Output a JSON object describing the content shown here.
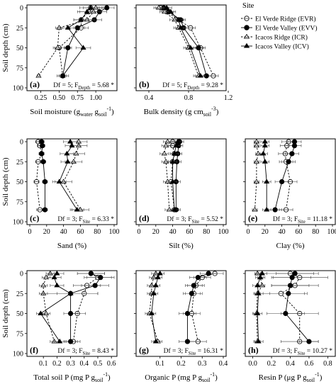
{
  "figure": {
    "y_axis_label": "Soil depth (cm)",
    "y_ticks": [
      0,
      25,
      50,
      75,
      100
    ]
  },
  "legend": {
    "title": "Site",
    "entries": [
      {
        "key": "EVR",
        "label": "El Verde Ridge (EVR)",
        "marker": "open-circle",
        "line": "dashed"
      },
      {
        "key": "EVV",
        "label": "El Verde Valley (EVV)",
        "marker": "filled-circle",
        "line": "solid"
      },
      {
        "key": "ICR",
        "label": "Icacos Ridge (ICR)",
        "marker": "open-triangle",
        "line": "dashed"
      },
      {
        "key": "ICV",
        "label": "Icacos Valley (ICV)",
        "marker": "filled-triangle",
        "line": "solid"
      }
    ]
  },
  "chart_data": [
    {
      "type": "line",
      "panel": "(a)",
      "stats": "Df = 5; F_Depth = 5.68 *",
      "xlabel": "Soil moisture (g_water g_soil^-1)",
      "xlim": [
        0.1,
        1.25
      ],
      "xticks": [
        "0.25",
        "0.50",
        "0.75",
        "1.00"
      ],
      "xtick_values": [
        0.25,
        0.5,
        0.75,
        1.0
      ],
      "ylim": [
        0,
        100
      ],
      "depth": [
        0,
        5,
        15,
        25,
        50,
        85
      ],
      "series": [
        {
          "name": "EVR",
          "values": [
            0.93,
            0.9,
            0.8,
            0.8,
            0.5,
            0.55
          ],
          "err": [
            0.15,
            0.15,
            0.1,
            0.1,
            0.08,
            0.08
          ]
        },
        {
          "name": "EVV",
          "values": [
            1.15,
            1.05,
            0.98,
            0.75,
            0.62,
            0.55
          ],
          "err": [
            0.1,
            0.1,
            0.1,
            0.1,
            0.05,
            0.05
          ]
        },
        {
          "name": "ICR",
          "values": [
            1.0,
            0.97,
            0.88,
            0.5,
            0.48,
            0.22
          ],
          "err": [
            0.1,
            0.1,
            0.1,
            0.05,
            0.04,
            0.02
          ]
        },
        {
          "name": "ICV",
          "values": [
            0.93,
            0.88,
            0.8,
            0.62,
            0.83,
            0.55
          ],
          "err": [
            0.1,
            0.1,
            0.1,
            0.1,
            0.1,
            0.05
          ]
        }
      ]
    },
    {
      "type": "line",
      "panel": "(b)",
      "stats": "Df = 5; F_Depth = 9.28 *",
      "xlabel": "Bulk density (g cm_soil^-3)",
      "xlim": [
        0.3,
        1.15
      ],
      "xticks": [
        "0.4",
        "0.8",
        "1.2"
      ],
      "xtick_values": [
        0.4,
        0.8,
        1.2
      ],
      "ylim": [
        0,
        100
      ],
      "depth": [
        0,
        5,
        15,
        25,
        50,
        85
      ],
      "series": [
        {
          "name": "EVR",
          "values": [
            0.52,
            0.58,
            0.7,
            0.82,
            0.92,
            1.05
          ],
          "err": [
            0.05,
            0.05,
            0.05,
            0.05,
            0.05,
            0.05
          ]
        },
        {
          "name": "EVV",
          "values": [
            0.55,
            0.6,
            0.72,
            0.75,
            0.9,
            0.98
          ],
          "err": [
            0.05,
            0.05,
            0.05,
            0.05,
            0.05,
            0.05
          ]
        },
        {
          "name": "ICR",
          "values": [
            0.5,
            0.56,
            0.66,
            0.7,
            0.8,
            0.9
          ],
          "err": [
            0.05,
            0.05,
            0.05,
            0.05,
            0.05,
            0.05
          ]
        },
        {
          "name": "ICV",
          "values": [
            0.58,
            0.62,
            0.7,
            0.72,
            0.82,
            0.92
          ],
          "err": [
            0.05,
            0.05,
            0.05,
            0.05,
            0.05,
            0.05
          ]
        }
      ]
    },
    {
      "type": "line",
      "panel": "(c)",
      "stats": "Df = 3; F_Site = 6.33 *",
      "xlabel": "Sand (%)",
      "xlim": [
        0,
        100
      ],
      "xticks": [
        "0",
        "20",
        "40",
        "60",
        "80",
        "100"
      ],
      "xtick_values": [
        0,
        20,
        40,
        60,
        80,
        100
      ],
      "ylim": [
        0,
        100
      ],
      "depth": [
        0,
        5,
        15,
        25,
        50,
        85
      ],
      "series": [
        {
          "name": "EVR",
          "values": [
            10,
            12,
            14,
            10,
            8,
            12
          ],
          "err": [
            3,
            3,
            3,
            3,
            3,
            4
          ]
        },
        {
          "name": "EVV",
          "values": [
            14,
            15,
            14,
            16,
            18,
            18
          ],
          "err": [
            3,
            3,
            3,
            3,
            3,
            3
          ]
        },
        {
          "name": "ICR",
          "values": [
            58,
            58,
            55,
            52,
            40,
            60
          ],
          "err": [
            10,
            10,
            10,
            10,
            10,
            10
          ]
        },
        {
          "name": "ICV",
          "values": [
            48,
            50,
            44,
            45,
            35,
            56
          ],
          "err": [
            8,
            8,
            8,
            8,
            8,
            8
          ]
        }
      ]
    },
    {
      "type": "line",
      "panel": "(d)",
      "stats": "Df = 3; F_Site = 5.52 *",
      "xlabel": "Silt (%)",
      "xlim": [
        0,
        100
      ],
      "xticks": [
        "0",
        "20",
        "40",
        "60",
        "80",
        "100"
      ],
      "xtick_values": [
        0,
        20,
        40,
        60,
        80,
        100
      ],
      "ylim": [
        0,
        100
      ],
      "depth": [
        0,
        5,
        15,
        25,
        50,
        85
      ],
      "series": [
        {
          "name": "EVR",
          "values": [
            40,
            40,
            42,
            40,
            38,
            42
          ],
          "err": [
            5,
            5,
            5,
            5,
            5,
            5
          ]
        },
        {
          "name": "EVV",
          "values": [
            48,
            47,
            46,
            45,
            44,
            44
          ],
          "err": [
            5,
            5,
            5,
            5,
            5,
            5
          ]
        },
        {
          "name": "ICR",
          "values": [
            34,
            32,
            30,
            32,
            34,
            36
          ],
          "err": [
            5,
            5,
            5,
            5,
            5,
            5
          ]
        },
        {
          "name": "ICV",
          "values": [
            46,
            44,
            42,
            40,
            40,
            42
          ],
          "err": [
            5,
            5,
            5,
            5,
            5,
            5
          ]
        }
      ]
    },
    {
      "type": "line",
      "panel": "(e)",
      "stats": "Df = 3; F_Site = 11.18 *",
      "xlabel": "Clay (%)",
      "xlim": [
        0,
        100
      ],
      "xticks": [
        "0",
        "20",
        "40",
        "60",
        "80",
        "100"
      ],
      "xtick_values": [
        0,
        20,
        40,
        60,
        80,
        100
      ],
      "ylim": [
        0,
        100
      ],
      "depth": [
        0,
        5,
        15,
        25,
        50,
        85
      ],
      "series": [
        {
          "name": "EVR",
          "values": [
            48,
            46,
            44,
            45,
            50,
            45
          ],
          "err": [
            8,
            8,
            8,
            8,
            8,
            8
          ]
        },
        {
          "name": "EVV",
          "values": [
            55,
            55,
            52,
            48,
            40,
            32
          ],
          "err": [
            8,
            8,
            8,
            8,
            8,
            8
          ]
        },
        {
          "name": "ICR",
          "values": [
            10,
            10,
            12,
            10,
            10,
            8
          ],
          "err": [
            3,
            3,
            3,
            3,
            3,
            3
          ]
        },
        {
          "name": "ICV",
          "values": [
            20,
            20,
            18,
            20,
            22,
            22
          ],
          "err": [
            5,
            5,
            5,
            5,
            5,
            5
          ]
        }
      ]
    },
    {
      "type": "line",
      "panel": "(f)",
      "stats": "Df = 3; F_Site = 8.43 *",
      "xlabel": "Total soil P (mg P g_soil^-1)",
      "xlim": [
        0,
        0.62
      ],
      "xticks": [
        "0.1",
        "0.2",
        "0.3",
        "0.4",
        "0.5",
        "0.6"
      ],
      "xtick_values": [
        0.1,
        0.2,
        0.3,
        0.4,
        0.5,
        0.6
      ],
      "ylim": [
        0,
        100
      ],
      "depth": [
        0,
        5,
        15,
        25,
        50,
        85
      ],
      "series": [
        {
          "name": "EVR",
          "values": [
            0.45,
            0.5,
            0.42,
            0.4,
            0.35,
            0.32
          ],
          "err": [
            0.1,
            0.1,
            0.1,
            0.1,
            0.06,
            0.05
          ]
        },
        {
          "name": "EVV",
          "values": [
            0.45,
            0.52,
            0.48,
            0.3,
            0.3,
            0.3
          ],
          "err": [
            0.1,
            0.1,
            0.1,
            0.1,
            0.05,
            0.05
          ]
        },
        {
          "name": "ICR",
          "values": [
            0.15,
            0.12,
            0.1,
            0.1,
            0.12,
            0.18
          ],
          "err": [
            0.03,
            0.03,
            0.03,
            0.03,
            0.03,
            0.03
          ]
        },
        {
          "name": "ICV",
          "values": [
            0.2,
            0.18,
            0.2,
            0.3,
            0.08,
            0.22
          ],
          "err": [
            0.05,
            0.05,
            0.05,
            0.2,
            0.03,
            0.04
          ]
        }
      ]
    },
    {
      "type": "line",
      "panel": "(g)",
      "stats": "Df = 3; F_Site = 16.31 *",
      "xlabel": "Organic P (mg P g_soil^-1)",
      "xlim": [
        0,
        0.4
      ],
      "xticks": [
        "0.1",
        "0.2",
        "0.3",
        "0.4"
      ],
      "xtick_values": [
        0.1,
        0.2,
        0.3,
        0.4
      ],
      "ylim": [
        0,
        100
      ],
      "depth": [
        0,
        5,
        15,
        25,
        50,
        85
      ],
      "series": [
        {
          "name": "EVR",
          "values": [
            0.36,
            0.3,
            0.27,
            0.26,
            0.25,
            0.28
          ],
          "err": [
            0.04,
            0.04,
            0.04,
            0.04,
            0.04,
            0.04
          ]
        },
        {
          "name": "EVV",
          "values": [
            0.33,
            0.28,
            0.26,
            0.25,
            0.23,
            0.23
          ],
          "err": [
            0.04,
            0.04,
            0.04,
            0.04,
            0.04,
            0.04
          ]
        },
        {
          "name": "ICR",
          "values": [
            0.08,
            0.07,
            0.06,
            0.06,
            0.05,
            0.09
          ],
          "err": [
            0.02,
            0.02,
            0.02,
            0.02,
            0.02,
            0.02
          ]
        },
        {
          "name": "ICV",
          "values": [
            0.1,
            0.09,
            0.08,
            0.07,
            0.06,
            0.08
          ],
          "err": [
            0.02,
            0.02,
            0.02,
            0.02,
            0.02,
            0.02
          ]
        }
      ]
    },
    {
      "type": "line",
      "panel": "(h)",
      "stats": "Df = 3; F_Site = 10.27 *",
      "xlabel": "Resin P (μg P g_soil^-1)",
      "xlim": [
        -0.05,
        0.85
      ],
      "xticks": [
        "0.0",
        "0.2",
        "0.4",
        "0.6",
        "0.8"
      ],
      "xtick_values": [
        0.0,
        0.2,
        0.4,
        0.6,
        0.8
      ],
      "ylim": [
        0,
        100
      ],
      "depth": [
        0,
        5,
        15,
        25,
        50,
        85
      ],
      "series": [
        {
          "name": "EVR",
          "values": [
            0.4,
            0.5,
            0.45,
            0.3,
            0.5,
            0.5
          ],
          "err": [
            0.3,
            0.3,
            0.25,
            0.25,
            0.2,
            0.2
          ]
        },
        {
          "name": "EVV",
          "values": [
            0.45,
            0.42,
            0.4,
            0.38,
            0.35,
            0.6
          ],
          "err": [
            0.2,
            0.2,
            0.2,
            0.2,
            0.2,
            0.1
          ]
        },
        {
          "name": "ICR",
          "values": [
            0.05,
            0.08,
            0.1,
            0.05,
            0.04,
            0.05
          ],
          "err": [
            0.03,
            0.03,
            0.03,
            0.03,
            0.03,
            0.03
          ]
        },
        {
          "name": "ICV",
          "values": [
            0.1,
            0.08,
            0.05,
            0.06,
            0.05,
            0.06
          ],
          "err": [
            0.05,
            0.05,
            0.05,
            0.05,
            0.05,
            0.05
          ]
        }
      ]
    }
  ]
}
